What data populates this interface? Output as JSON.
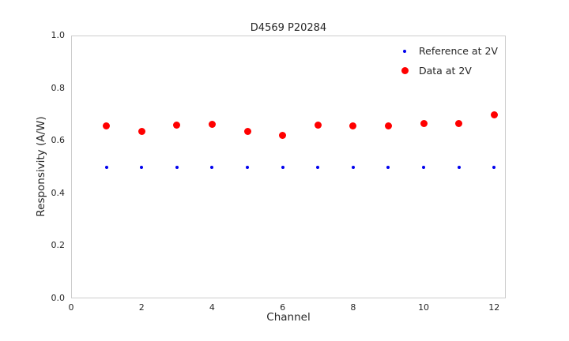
{
  "title": "D4569 P20284",
  "chart_data": {
    "type": "scatter",
    "title": "D4569 P20284",
    "xlabel": "Channel",
    "ylabel": "Responsivity (A/W)",
    "xlim": [
      0,
      12.33
    ],
    "ylim": [
      0.0,
      1.0
    ],
    "xticks": [
      0,
      2,
      4,
      6,
      8,
      10,
      12
    ],
    "yticks": [
      0.0,
      0.2,
      0.4,
      0.6,
      0.8,
      1.0
    ],
    "grid": false,
    "legend_position": "upper right",
    "x": [
      1,
      2,
      3,
      4,
      5,
      6,
      7,
      8,
      9,
      10,
      11,
      12
    ],
    "series": [
      {
        "name": "Reference at 2V",
        "color": "#0000ee",
        "marker_size": 4,
        "values": [
          0.5,
          0.5,
          0.5,
          0.5,
          0.5,
          0.5,
          0.5,
          0.5,
          0.5,
          0.5,
          0.5,
          0.5
        ]
      },
      {
        "name": "Data at 2V",
        "color": "#ff0000",
        "marker_size": 9,
        "values": [
          0.655,
          0.635,
          0.66,
          0.663,
          0.636,
          0.621,
          0.66,
          0.655,
          0.655,
          0.666,
          0.664,
          0.698
        ]
      }
    ]
  }
}
